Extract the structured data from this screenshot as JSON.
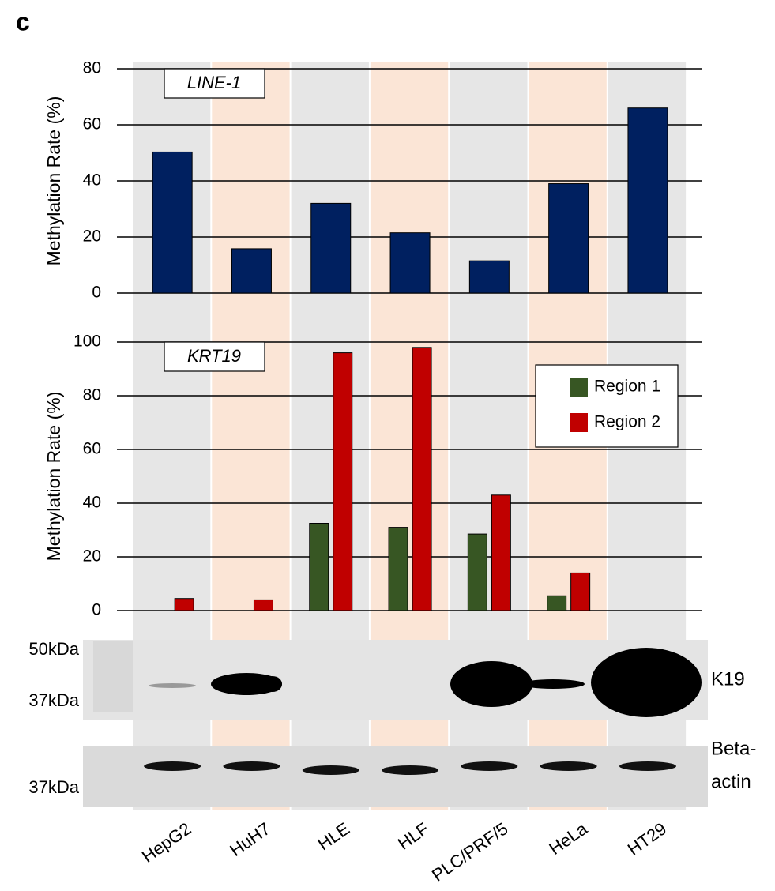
{
  "panel_label": "c",
  "chart_data": [
    {
      "type": "bar",
      "title": "LINE-1",
      "y_label": "Methylation Rate (%)",
      "series": [
        {
          "name": "LINE-1",
          "color": "#002060",
          "values": [
            50.3,
            15.8,
            32,
            21.5,
            11.5,
            39,
            66
          ]
        }
      ],
      "ylim": [
        0,
        80
      ],
      "yticks": [
        0,
        20,
        40,
        60,
        80
      ],
      "grid": true
    },
    {
      "type": "grouped-bar",
      "title": "KRT19",
      "y_label": "Methylation Rate (%)",
      "categories": [
        "HepG2",
        "HuH7",
        "HLE",
        "HLF",
        "PLC/PRF/5",
        "HeLa",
        "HT29"
      ],
      "series": [
        {
          "name": "Region 1",
          "color": "#375623",
          "values": [
            0,
            0,
            32.5,
            31,
            28.5,
            5.5,
            0
          ]
        },
        {
          "name": "Region 2",
          "color": "#c00000",
          "values": [
            4.5,
            4,
            96,
            98,
            43,
            14,
            0
          ]
        }
      ],
      "ylim": [
        0,
        100
      ],
      "yticks": [
        0,
        20,
        40,
        60,
        80,
        100
      ],
      "grid": true,
      "legend": "upper-right"
    }
  ],
  "blots": [
    {
      "label": [
        "K19"
      ],
      "markers": [
        "50kDa",
        "37kDa"
      ]
    },
    {
      "label": [
        "Beta-",
        "actin"
      ],
      "markers": [
        "37kDa"
      ]
    }
  ]
}
